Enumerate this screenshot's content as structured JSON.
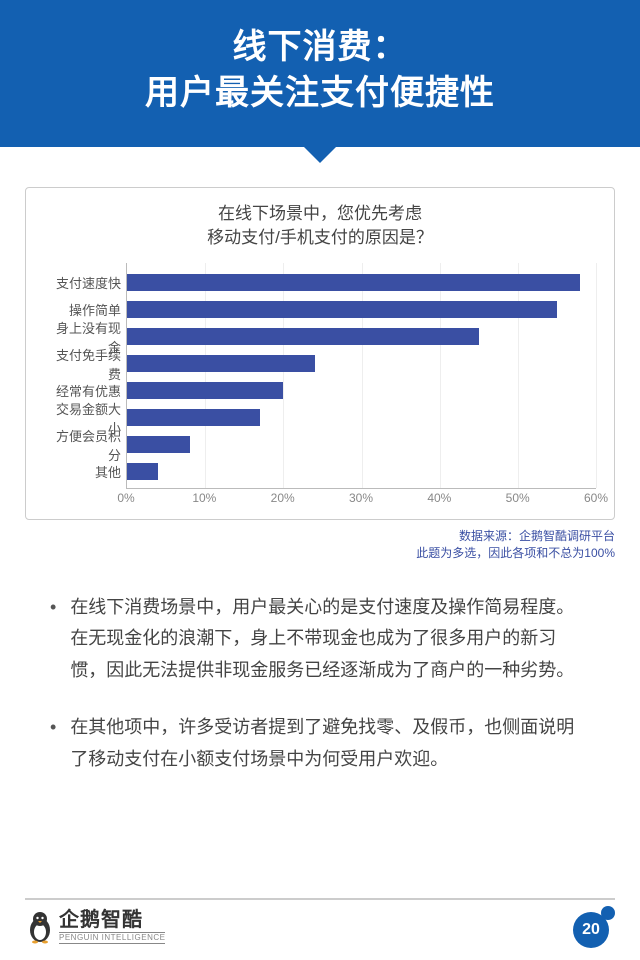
{
  "header": {
    "title_line1": "线下消费：",
    "title_line2": "用户最关注支付便捷性"
  },
  "chart": {
    "type": "bar",
    "orientation": "horizontal",
    "title_line1": "在线下场景中，您优先考虑",
    "title_line2": "移动支付/手机支付的原因是？",
    "title_fontsize": 17,
    "title_color": "#444444",
    "bar_color": "#3a4fa3",
    "grid_color": "#eeeeee",
    "axis_color": "#bbbbbb",
    "label_fontsize": 13,
    "label_color": "#555555",
    "background_color": "#ffffff",
    "xlim": [
      0,
      60
    ],
    "xtick_step": 10,
    "xtick_labels": [
      "0%",
      "10%",
      "20%",
      "30%",
      "40%",
      "50%",
      "60%"
    ],
    "categories": [
      "支付速度快",
      "操作简单",
      "身上没有现金",
      "支付免手续费",
      "经常有优惠",
      "交易金额大小",
      "方便会员积分",
      "其他"
    ],
    "values": [
      58,
      55,
      45,
      24,
      20,
      17,
      8,
      4
    ]
  },
  "source": {
    "line1": "数据来源：企鹅智酷调研平台",
    "line2": "此题为多选，因此各项和不总为100%",
    "color": "#3a4fa3",
    "fontsize": 12
  },
  "bullets": [
    "在线下消费场景中，用户最关心的是支付速度及操作简易程度。在无现金化的浪潮下，身上不带现金也成为了很多用户的新习惯，因此无法提供非现金服务已经逐渐成为了商户的一种劣势。",
    "在其他项中，许多受访者提到了避免找零、及假币，也侧面说明了移动支付在小额支付场景中为何受用户欢迎。"
  ],
  "footer": {
    "logo_cn": "企鹅智酷",
    "logo_en": "PENGUIN INTELLIGENCE",
    "page_number": "20",
    "brand_color": "#1360b1"
  }
}
